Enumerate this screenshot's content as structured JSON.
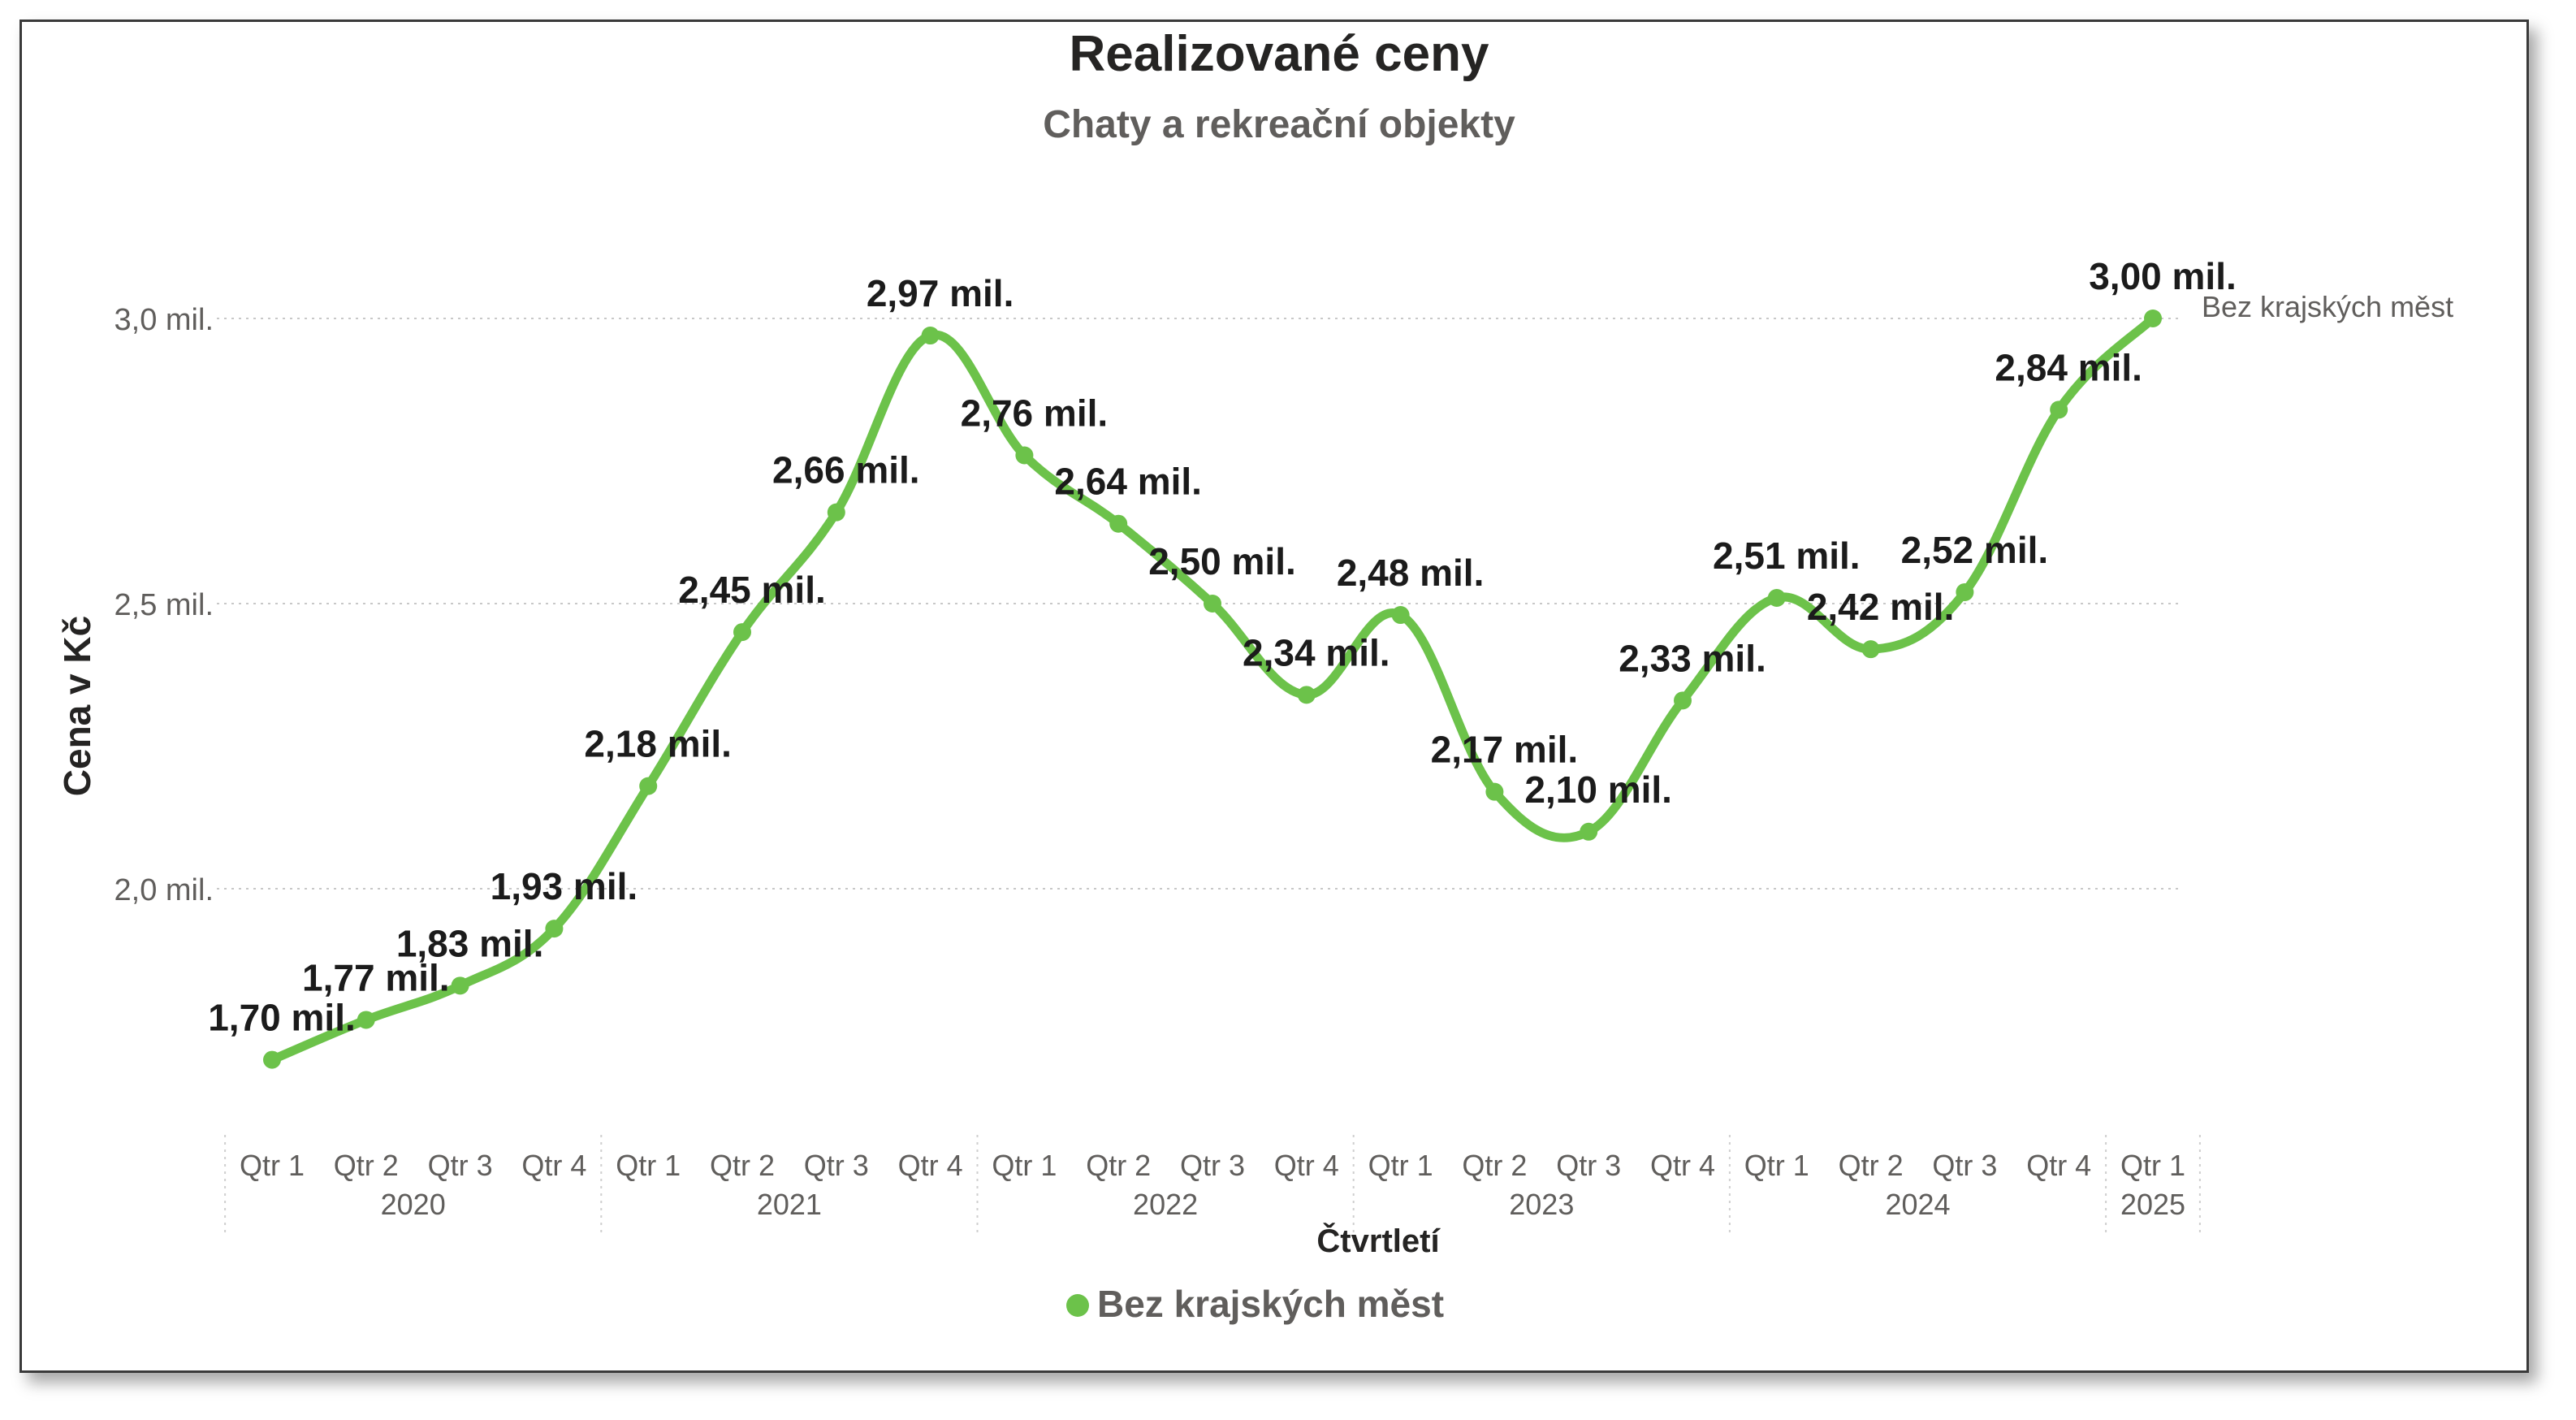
{
  "chart_data": {
    "type": "line",
    "title": "Realizované ceny",
    "subtitle": "Chaty a rekreační objekty",
    "xlabel": "Čtvrtletí",
    "ylabel": "Cena v Kč",
    "ylim": [
      1.6,
      3.25
    ],
    "y_ticks": [
      {
        "value": 2.0,
        "label": "2,0 mil."
      },
      {
        "value": 2.5,
        "label": "2,5 mil."
      },
      {
        "value": 3.0,
        "label": "3,0 mil."
      }
    ],
    "grid": true,
    "legend_position": "bottom",
    "years": [
      {
        "label": "2020",
        "quarters": 4
      },
      {
        "label": "2021",
        "quarters": 4
      },
      {
        "label": "2022",
        "quarters": 4
      },
      {
        "label": "2023",
        "quarters": 4
      },
      {
        "label": "2024",
        "quarters": 4
      },
      {
        "label": "2025",
        "quarters": 1
      }
    ],
    "categories": [
      "Qtr 1",
      "Qtr 2",
      "Qtr 3",
      "Qtr 4",
      "Qtr 1",
      "Qtr 2",
      "Qtr 3",
      "Qtr 4",
      "Qtr 1",
      "Qtr 2",
      "Qtr 3",
      "Qtr 4",
      "Qtr 1",
      "Qtr 2",
      "Qtr 3",
      "Qtr 4",
      "Qtr 1",
      "Qtr 2",
      "Qtr 3",
      "Qtr 4",
      "Qtr 1"
    ],
    "series": [
      {
        "name": "Bez krajských měst",
        "color": "#6cc24a",
        "values": [
          1.7,
          1.77,
          1.83,
          1.93,
          2.18,
          2.45,
          2.66,
          2.97,
          2.76,
          2.64,
          2.5,
          2.34,
          2.48,
          2.17,
          2.1,
          2.33,
          2.51,
          2.42,
          2.52,
          2.84,
          3.0
        ],
        "labels": [
          "1,70 mil.",
          "1,77 mil.",
          "1,83 mil.",
          "1,93 mil.",
          "2,18 mil.",
          "2,45 mil.",
          "2,66 mil.",
          "2,97 mil.",
          "2,76 mil.",
          "2,64 mil.",
          "2,50 mil.",
          "2,34 mil.",
          "2,48 mil.",
          "2,17 mil.",
          "2,10 mil.",
          "2,33 mil.",
          "2,51 mil.",
          "2,42 mil.",
          "2,52 mil.",
          "2,84 mil.",
          "3,00 mil."
        ]
      }
    ]
  }
}
